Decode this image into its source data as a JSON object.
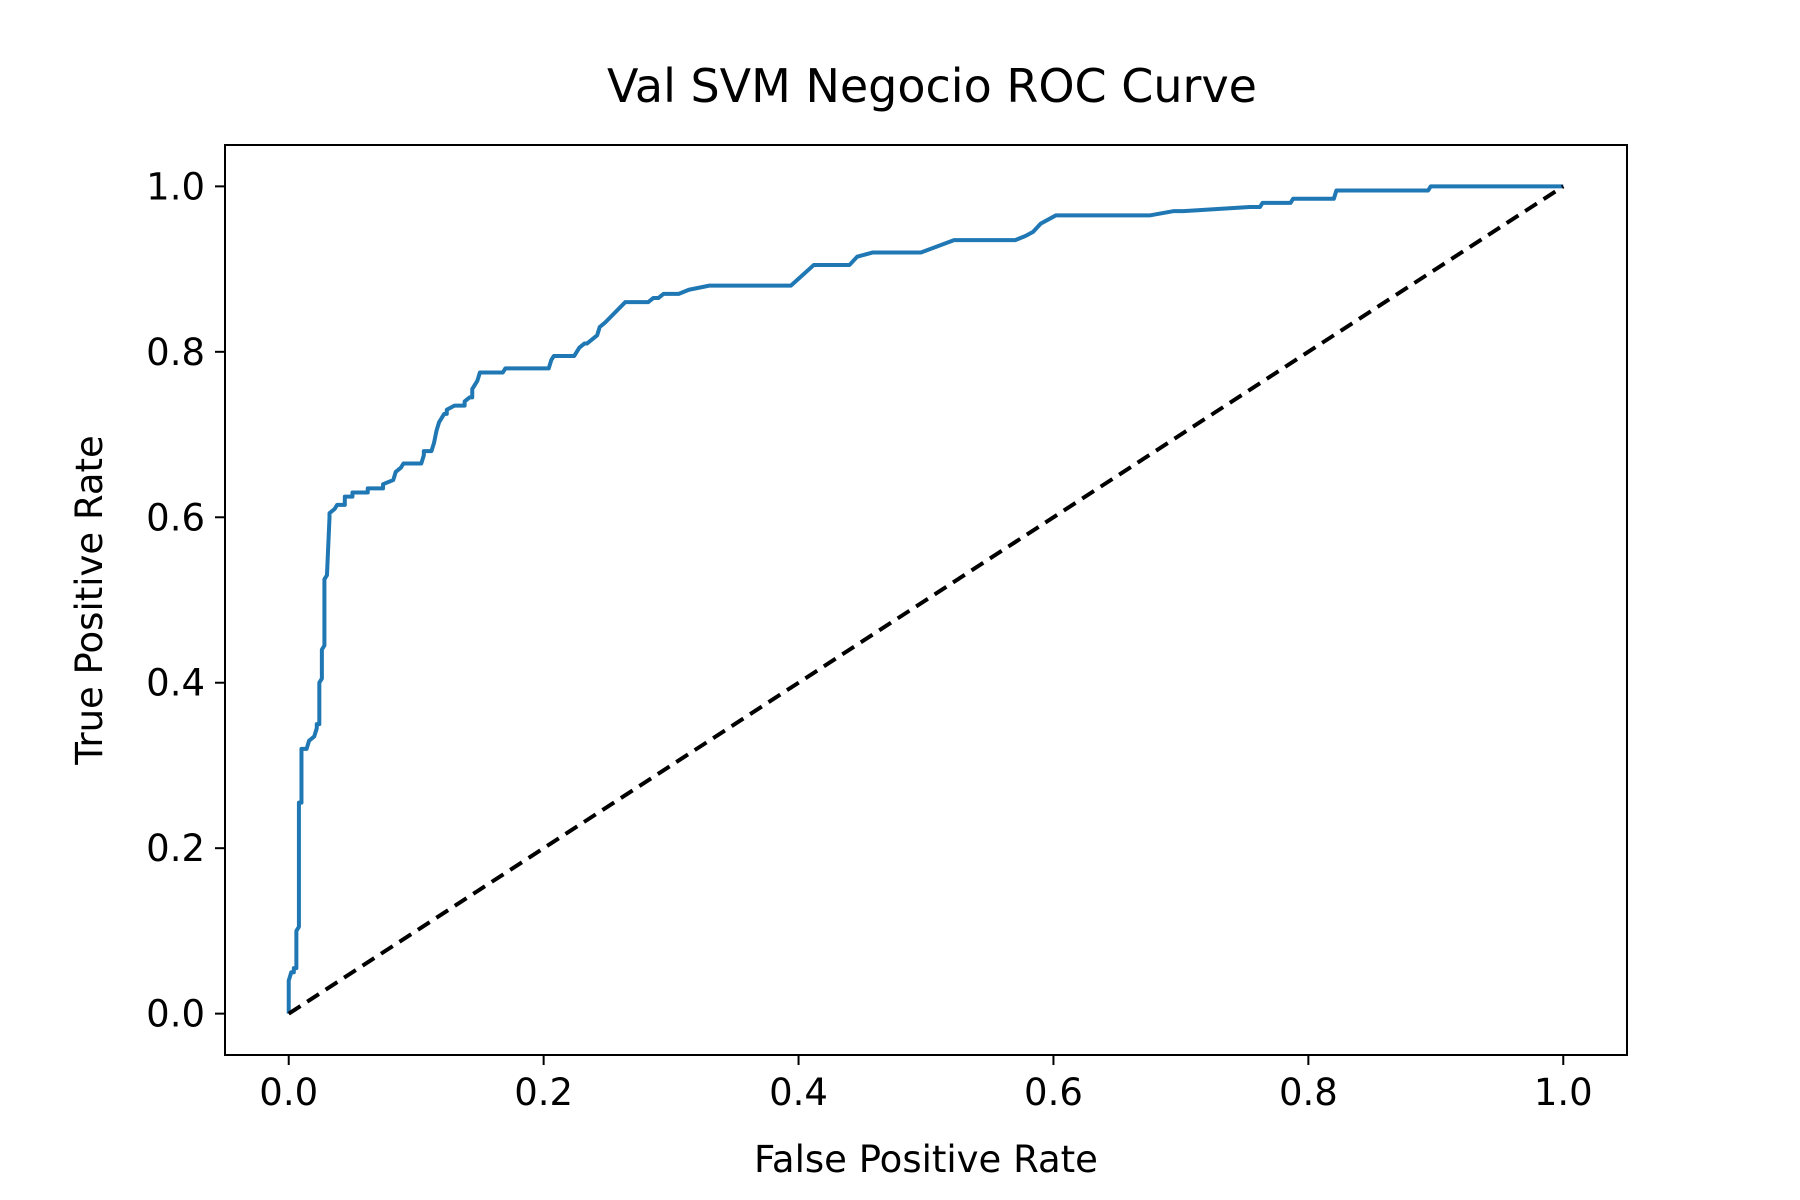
{
  "chart_data": {
    "type": "line",
    "title": "Val SVM Negocio ROC Curve",
    "xlabel": "False Positive Rate",
    "ylabel": "True Positive Rate",
    "xlim": [
      -0.05,
      1.05
    ],
    "ylim": [
      -0.05,
      1.05
    ],
    "x_ticks": [
      "0.0",
      "0.2",
      "0.4",
      "0.6",
      "0.8",
      "1.0"
    ],
    "y_ticks": [
      "0.0",
      "0.2",
      "0.4",
      "0.6",
      "0.8",
      "1.0"
    ],
    "grid": false,
    "legend": "none",
    "series": [
      {
        "color": "#1f77b4",
        "style": "solid",
        "x": [
          0.0,
          0.0,
          0.002,
          0.004,
          0.004,
          0.006,
          0.006,
          0.008,
          0.008,
          0.01,
          0.01,
          0.014,
          0.016,
          0.02,
          0.022,
          0.022,
          0.024,
          0.024,
          0.026,
          0.026,
          0.028,
          0.028,
          0.03,
          0.032,
          0.032,
          0.036,
          0.038,
          0.038,
          0.044,
          0.044,
          0.05,
          0.05,
          0.062,
          0.062,
          0.074,
          0.074,
          0.082,
          0.082,
          0.084,
          0.088,
          0.09,
          0.1,
          0.104,
          0.106,
          0.106,
          0.112,
          0.114,
          0.116,
          0.118,
          0.118,
          0.122,
          0.124,
          0.124,
          0.13,
          0.13,
          0.138,
          0.138,
          0.142,
          0.144,
          0.144,
          0.148,
          0.15,
          0.16,
          0.168,
          0.17,
          0.204,
          0.206,
          0.208,
          0.212,
          0.224,
          0.226,
          0.228,
          0.232,
          0.234,
          0.242,
          0.244,
          0.248,
          0.264,
          0.282,
          0.286,
          0.29,
          0.294,
          0.306,
          0.314,
          0.33,
          0.394,
          0.412,
          0.44,
          0.446,
          0.458,
          0.496,
          0.522,
          0.57,
          0.578,
          0.584,
          0.59,
          0.602,
          0.676,
          0.694,
          0.702,
          0.754,
          0.762,
          0.764,
          0.786,
          0.788,
          0.82,
          0.822,
          0.894,
          0.896,
          1.0
        ],
        "y": [
          0.0,
          0.04,
          0.05,
          0.05,
          0.055,
          0.055,
          0.1,
          0.105,
          0.255,
          0.255,
          0.32,
          0.32,
          0.33,
          0.335,
          0.345,
          0.35,
          0.35,
          0.4,
          0.405,
          0.44,
          0.445,
          0.525,
          0.53,
          0.6,
          0.605,
          0.61,
          0.615,
          0.615,
          0.615,
          0.625,
          0.625,
          0.63,
          0.63,
          0.635,
          0.635,
          0.64,
          0.645,
          0.645,
          0.655,
          0.66,
          0.665,
          0.665,
          0.665,
          0.675,
          0.68,
          0.68,
          0.69,
          0.705,
          0.715,
          0.715,
          0.725,
          0.725,
          0.73,
          0.735,
          0.735,
          0.735,
          0.74,
          0.745,
          0.745,
          0.755,
          0.765,
          0.775,
          0.775,
          0.775,
          0.78,
          0.78,
          0.79,
          0.795,
          0.795,
          0.795,
          0.8,
          0.805,
          0.81,
          0.81,
          0.82,
          0.83,
          0.835,
          0.86,
          0.86,
          0.865,
          0.865,
          0.87,
          0.87,
          0.875,
          0.88,
          0.88,
          0.905,
          0.905,
          0.915,
          0.92,
          0.92,
          0.935,
          0.935,
          0.94,
          0.945,
          0.955,
          0.965,
          0.965,
          0.97,
          0.97,
          0.975,
          0.975,
          0.98,
          0.98,
          0.985,
          0.985,
          0.995,
          0.995,
          1.0,
          1.0
        ]
      },
      {
        "color": "#000000",
        "style": "dashed",
        "x": [
          0.0,
          1.0
        ],
        "y": [
          0.0,
          1.0
        ]
      }
    ]
  }
}
